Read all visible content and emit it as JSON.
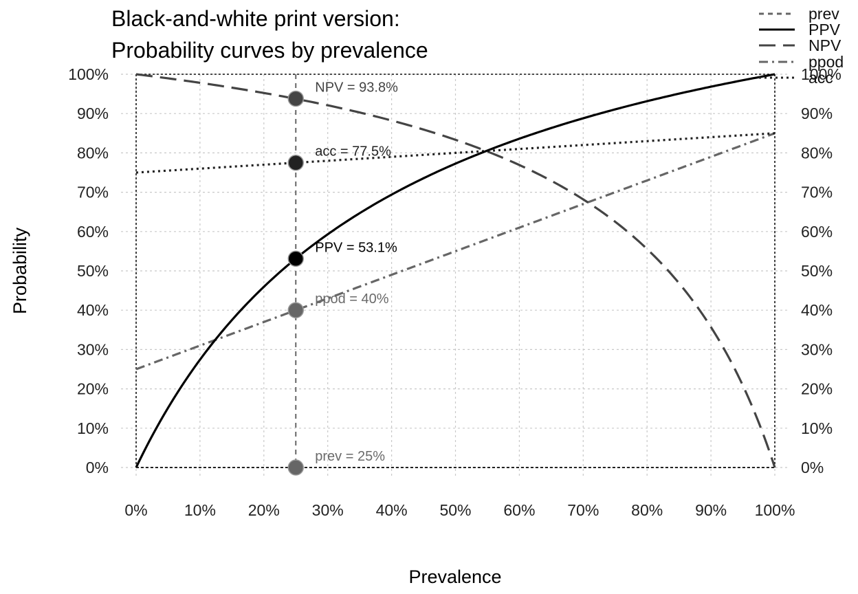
{
  "chart_data": {
    "type": "line",
    "title": "Black-and-white print version:",
    "subtitle": "Probability curves by prevalence",
    "xlabel": "Prevalence",
    "ylabel": "Probability",
    "xlim": [
      0,
      1
    ],
    "ylim": [
      0,
      1
    ],
    "x_ticks": [
      "0%",
      "10%",
      "20%",
      "30%",
      "40%",
      "50%",
      "60%",
      "70%",
      "80%",
      "90%",
      "100%"
    ],
    "y_ticks": [
      "0%",
      "10%",
      "20%",
      "30%",
      "40%",
      "50%",
      "60%",
      "70%",
      "80%",
      "90%",
      "100%"
    ],
    "grid": true,
    "legend_position": "top-right",
    "sensitivity": 0.85,
    "specificity": 0.75,
    "current_prevalence": 0.25,
    "series": [
      {
        "name": "prev",
        "key": "prev",
        "style": "dashed",
        "color": "#666666"
      },
      {
        "name": "PPV",
        "key": "PPV",
        "style": "solid",
        "color": "#000000"
      },
      {
        "name": "NPV",
        "key": "NPV",
        "style": "longdash",
        "color": "#444444"
      },
      {
        "name": "ppod",
        "key": "ppod",
        "style": "dotdash",
        "color": "#666666"
      },
      {
        "name": "acc",
        "key": "acc",
        "style": "dotted",
        "color": "#222222"
      }
    ],
    "points": [
      {
        "key": "NPV",
        "x": 0.25,
        "y": 0.938,
        "label": "NPV = 93.8%",
        "color": "#444444",
        "label_color": "#444444"
      },
      {
        "key": "acc",
        "x": 0.25,
        "y": 0.775,
        "label": "acc = 77.5%",
        "color": "#222222",
        "label_color": "#222222"
      },
      {
        "key": "PPV",
        "x": 0.25,
        "y": 0.531,
        "label": "PPV = 53.1%",
        "color": "#000000",
        "label_color": "#000000"
      },
      {
        "key": "ppod",
        "x": 0.25,
        "y": 0.4,
        "label": "ppod = 40%",
        "color": "#666666",
        "label_color": "#6a6a6a"
      },
      {
        "key": "prev",
        "x": 0.25,
        "y": 0.0,
        "label": "prev = 25%",
        "color": "#666666",
        "label_color": "#6a6a6a"
      }
    ]
  }
}
